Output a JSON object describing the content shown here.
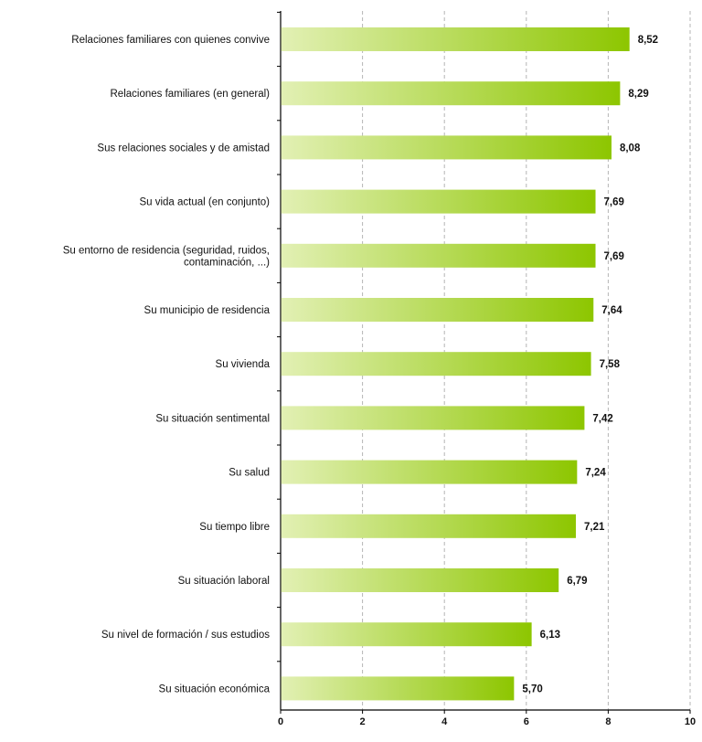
{
  "chart_data": {
    "type": "bar",
    "orientation": "horizontal",
    "title": "",
    "xlabel": "",
    "ylabel": "",
    "xlim": [
      0,
      10
    ],
    "x_ticks": [
      "0",
      "2",
      "4",
      "6",
      "8",
      "10"
    ],
    "grid": "vertical-dashed",
    "bar_gradient": [
      "#e2f0b4",
      "#8dc600"
    ],
    "categories": [
      "Relaciones familiares con quienes convive",
      "Relaciones familiares (en general)",
      "Sus relaciones sociales y de amistad",
      "Su vida actual (en conjunto)",
      "Su entorno de residencia (seguridad, ruidos, contaminación, ...)",
      "Su municipio de residencia",
      "Su vivienda",
      "Su situación sentimental",
      "Su salud",
      "Su tiempo libre",
      "Su situación laboral",
      "Su nivel de formación / sus estudios",
      "Su situación económica"
    ],
    "values": [
      8.52,
      8.29,
      8.08,
      7.69,
      7.69,
      7.64,
      7.58,
      7.42,
      7.24,
      7.21,
      6.79,
      6.13,
      5.7
    ],
    "value_labels": [
      "8,52",
      "8,29",
      "8,08",
      "7,69",
      "7,69",
      "7,64",
      "7,58",
      "7,42",
      "7,24",
      "7,21",
      "6,79",
      "6,13",
      "5,70"
    ]
  }
}
